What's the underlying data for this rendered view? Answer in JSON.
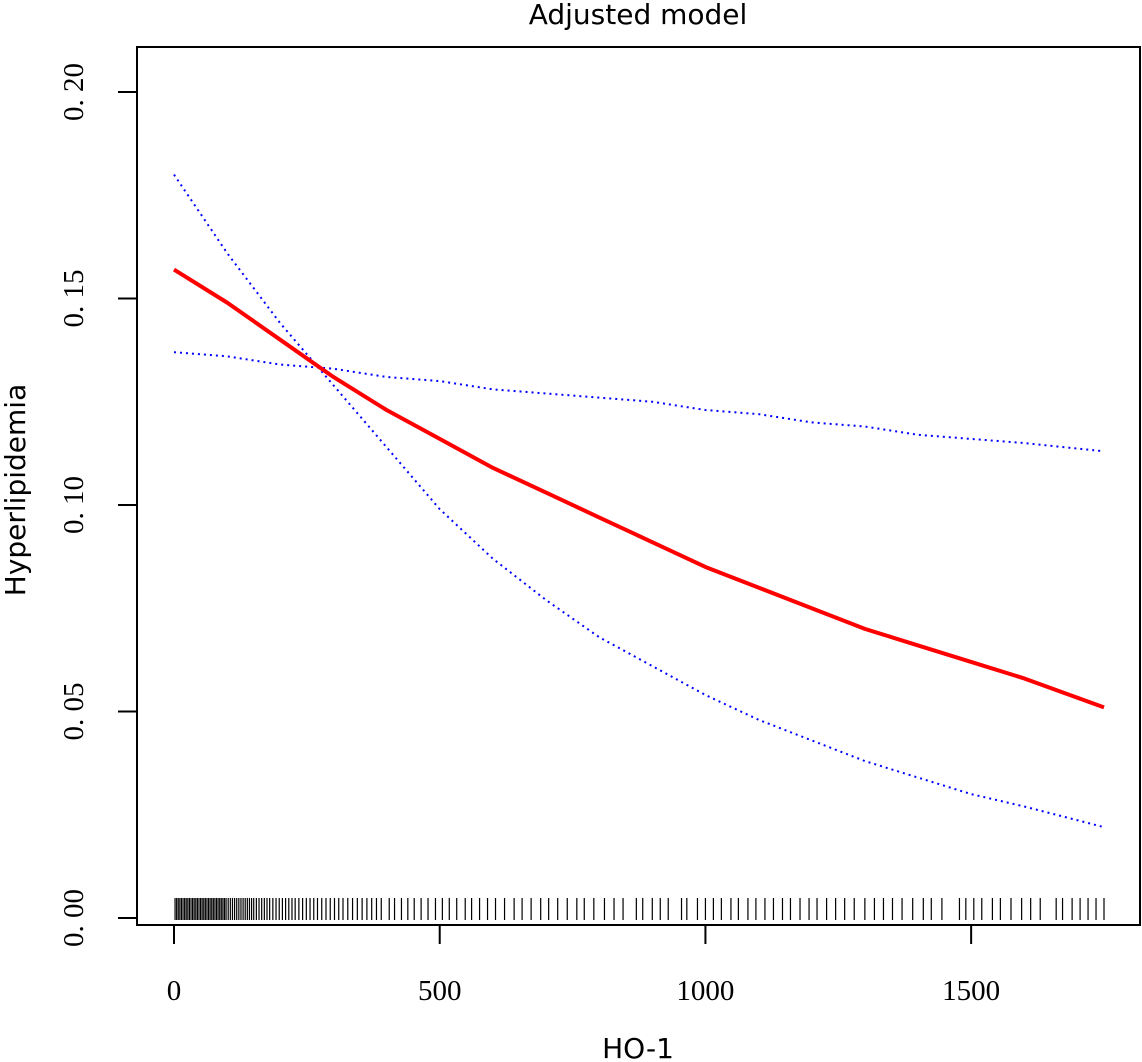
{
  "chart_data": {
    "type": "line",
    "title": "Adjusted model",
    "xlabel": "HO-1",
    "ylabel": "Hyperlipidemia",
    "xlim": [
      0,
      1750
    ],
    "ylim": [
      0,
      0.2
    ],
    "x_ticks": [
      0,
      500,
      1000,
      1500
    ],
    "x_tick_labels": [
      "0",
      "500",
      "1000",
      "1500"
    ],
    "y_ticks": [
      0,
      0.05,
      0.1,
      0.15,
      0.2
    ],
    "y_tick_labels": [
      "0. 00",
      "0. 05",
      "0. 10",
      "0. 15",
      "0. 20"
    ],
    "grid": false,
    "legend": "none",
    "x": [
      0,
      100,
      200,
      300,
      400,
      500,
      600,
      700,
      800,
      900,
      1000,
      1100,
      1200,
      1300,
      1400,
      1500,
      1600,
      1750
    ],
    "series": [
      {
        "values": [
          0.157,
          0.149,
          0.14,
          0.131,
          0.123,
          0.116,
          0.109,
          0.103,
          0.097,
          0.091,
          0.085,
          0.08,
          0.075,
          0.07,
          0.066,
          0.062,
          0.058,
          0.051
        ],
        "color": "#ff0000",
        "style": "solid"
      },
      {
        "values": [
          0.18,
          0.161,
          0.144,
          0.129,
          0.114,
          0.099,
          0.087,
          0.077,
          0.068,
          0.061,
          0.054,
          0.048,
          0.043,
          0.038,
          0.034,
          0.03,
          0.027,
          0.022
        ],
        "color": "#0000ff",
        "style": "dotted"
      },
      {
        "values": [
          0.137,
          0.136,
          0.134,
          0.133,
          0.131,
          0.13,
          0.128,
          0.127,
          0.126,
          0.125,
          0.123,
          0.122,
          0.12,
          0.119,
          0.117,
          0.116,
          0.115,
          0.113
        ],
        "color": "#0000ff",
        "style": "dotted"
      }
    ],
    "rug_x": [
      2,
      5,
      8,
      11,
      14,
      17,
      20,
      23,
      26,
      29,
      32,
      35,
      38,
      41,
      44,
      47,
      50,
      53,
      56,
      59,
      62,
      65,
      68,
      71,
      74,
      77,
      80,
      83,
      86,
      89,
      92,
      95,
      98,
      102,
      106,
      110,
      114,
      118,
      122,
      126,
      130,
      134,
      138,
      142,
      146,
      150,
      155,
      160,
      165,
      170,
      175,
      180,
      186,
      192,
      198,
      204,
      210,
      216,
      222,
      228,
      235,
      242,
      249,
      256,
      263,
      270,
      278,
      286,
      294,
      302,
      310,
      318,
      327,
      336,
      345,
      354,
      363,
      372,
      381,
      390,
      405,
      415,
      428,
      440,
      452,
      465,
      478,
      492,
      505,
      518,
      532,
      548,
      560,
      575,
      590,
      605,
      622,
      640,
      655,
      672,
      690,
      705,
      722,
      740,
      758,
      772,
      790,
      810,
      828,
      845,
      870,
      882,
      900,
      915,
      930,
      955,
      965,
      985,
      1000,
      1015,
      1030,
      1048,
      1062,
      1080,
      1095,
      1112,
      1128,
      1145,
      1160,
      1178,
      1195,
      1210,
      1228,
      1245,
      1262,
      1280,
      1300,
      1318,
      1335,
      1352,
      1370,
      1390,
      1410,
      1425,
      1445,
      1478,
      1490,
      1505,
      1520,
      1540,
      1555,
      1575,
      1595,
      1612,
      1630,
      1660,
      1672,
      1690,
      1705,
      1720,
      1735,
      1750
    ]
  }
}
